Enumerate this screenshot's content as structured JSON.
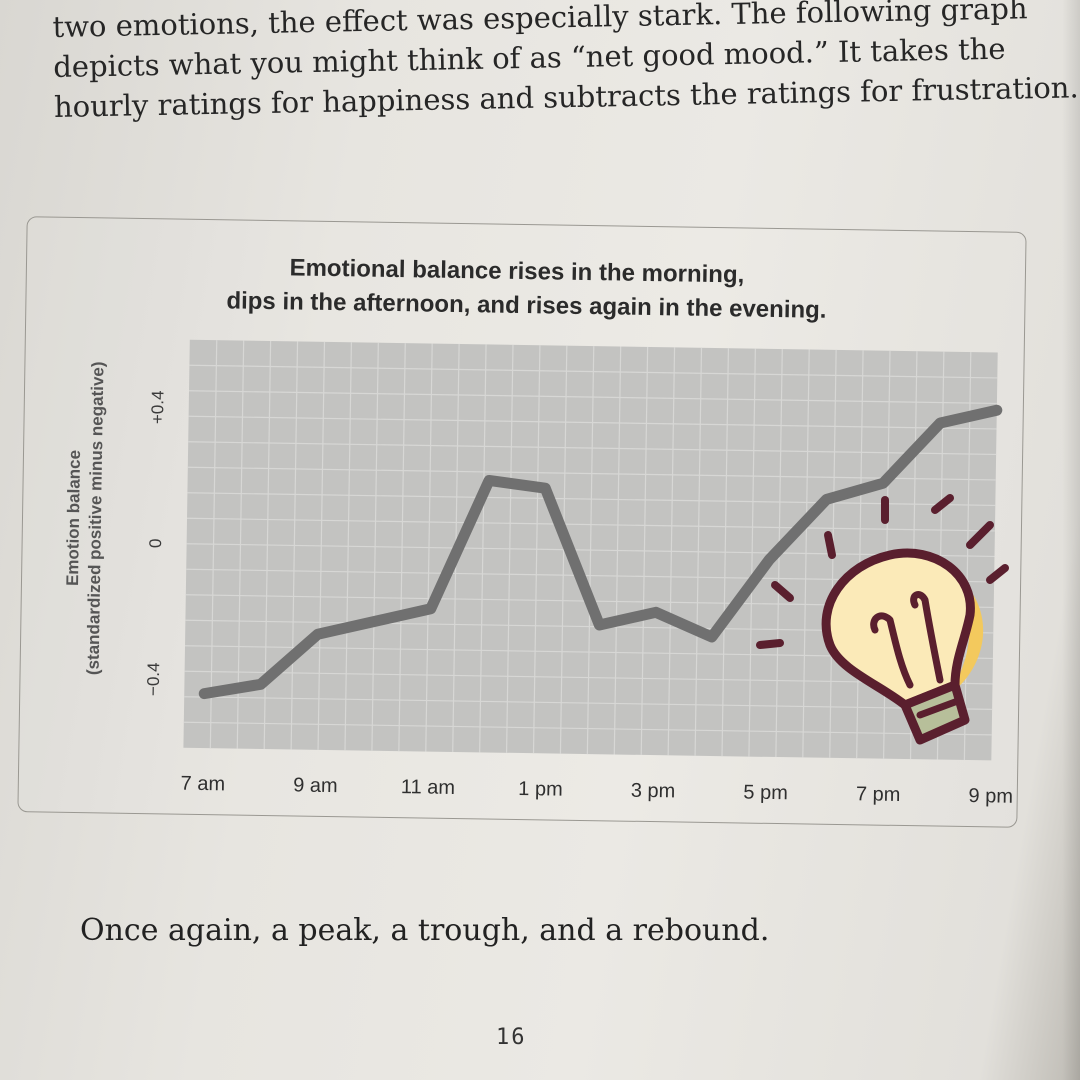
{
  "book": {
    "paragraph_lines": [
      "two emotions, the effect was especially stark. The following graph",
      "depicts what you might think of as “net good mood.” It takes the",
      "hourly ratings for happiness and subtracts the ratings for frustration."
    ],
    "caption": "Once again, a peak, a trough, and a rebound.",
    "page_number": "16"
  },
  "chart_data": {
    "type": "line",
    "title_lines": [
      "Emotional balance rises in the morning,",
      "dips in the afternoon, and rises again in the evening."
    ],
    "ylabel_lines": [
      "Emotion balance",
      "(standardized positive minus negative)"
    ],
    "xlabel": "",
    "x_tick_labels": [
      "7 am",
      "9 am",
      "11 am",
      "1 pm",
      "3 pm",
      "5 pm",
      "7 pm",
      "9 pm"
    ],
    "y_tick_labels": [
      "+0.4",
      "0",
      "−0.4"
    ],
    "y_ticks": [
      0.4,
      0,
      -0.4
    ],
    "ylim": [
      -0.6,
      0.6
    ],
    "xlim": [
      7,
      21
    ],
    "grid": true,
    "series": [
      {
        "x": [
          7,
          8,
          9,
          10,
          11,
          12,
          13,
          14,
          15,
          16,
          17,
          18,
          19,
          20,
          21
        ],
        "y": [
          -0.44,
          -0.41,
          -0.26,
          -0.22,
          -0.18,
          0.2,
          0.18,
          -0.22,
          -0.18,
          -0.25,
          -0.02,
          0.16,
          0.21,
          0.39,
          0.43
        ]
      }
    ]
  },
  "overlay": {
    "icon": "lightbulb-icon",
    "colors": {
      "outline": "#5a1f2e",
      "glass": "#fbeab8",
      "glow": "#f3c95d",
      "base": "#b7bf9a"
    }
  },
  "colors": {
    "plot_background": "#c3c3c1",
    "grid": "#d7d7d5",
    "line": "#707070",
    "text": "#2b2b2b"
  }
}
